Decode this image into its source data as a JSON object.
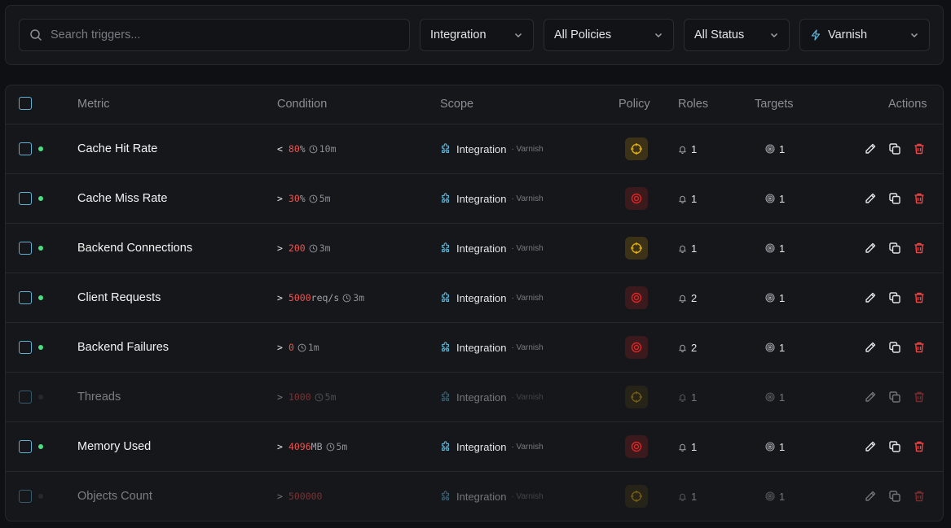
{
  "filters": {
    "search_placeholder": "Search triggers...",
    "scope_select": "Integration",
    "policy_select": "All Policies",
    "status_select": "All Status",
    "integration_select": "Varnish"
  },
  "table": {
    "headers": {
      "metric": "Metric",
      "condition": "Condition",
      "scope": "Scope",
      "policy": "Policy",
      "roles": "Roles",
      "targets": "Targets",
      "actions": "Actions"
    },
    "rows": [
      {
        "metric": "Cache Hit Rate",
        "op": "<",
        "threshold": "80",
        "unit": "%",
        "duration": "10m",
        "scope": "Integration",
        "scope_sub": "· Varnish",
        "policy": "warning",
        "roles": "1",
        "targets": "1",
        "enabled": true
      },
      {
        "metric": "Cache Miss Rate",
        "op": ">",
        "threshold": "30",
        "unit": "%",
        "duration": "5m",
        "scope": "Integration",
        "scope_sub": "· Varnish",
        "policy": "critical",
        "roles": "1",
        "targets": "1",
        "enabled": true
      },
      {
        "metric": "Backend Connections",
        "op": ">",
        "threshold": "200",
        "unit": "",
        "duration": "3m",
        "scope": "Integration",
        "scope_sub": "· Varnish",
        "policy": "warning",
        "roles": "1",
        "targets": "1",
        "enabled": true
      },
      {
        "metric": "Client Requests",
        "op": ">",
        "threshold": "5000",
        "unit": "req/s",
        "duration": "3m",
        "scope": "Integration",
        "scope_sub": "· Varnish",
        "policy": "critical",
        "roles": "2",
        "targets": "1",
        "enabled": true
      },
      {
        "metric": "Backend Failures",
        "op": ">",
        "threshold": "0",
        "unit": "",
        "duration": "1m",
        "scope": "Integration",
        "scope_sub": "· Varnish",
        "policy": "critical",
        "roles": "2",
        "targets": "1",
        "enabled": true
      },
      {
        "metric": "Threads",
        "op": ">",
        "threshold": "1000",
        "unit": "",
        "duration": "5m",
        "scope": "Integration",
        "scope_sub": "· Varnish",
        "policy": "warning",
        "roles": "1",
        "targets": "1",
        "enabled": false
      },
      {
        "metric": "Memory Used",
        "op": ">",
        "threshold": "4096",
        "unit": "MB",
        "duration": "5m",
        "scope": "Integration",
        "scope_sub": "· Varnish",
        "policy": "critical",
        "roles": "1",
        "targets": "1",
        "enabled": true
      },
      {
        "metric": "Objects Count",
        "op": ">",
        "threshold": "500000",
        "unit": "",
        "duration": "",
        "scope": "Integration",
        "scope_sub": "· Varnish",
        "policy": "warning",
        "roles": "1",
        "targets": "1",
        "enabled": false
      }
    ]
  },
  "colors": {
    "accent": "#5fb0d2",
    "enabled_dot": "#4ade80",
    "disabled_dot": "#3f3f46",
    "threshold": "#ef5350",
    "warning": "#eab308",
    "critical": "#dc2626",
    "delete": "#ef4444"
  },
  "icons": {
    "search": "search-icon",
    "chevron": "chevron-down-icon",
    "integration": "bolt-icon",
    "scope": "puzzle-icon",
    "warning_policy": "crosshair-icon",
    "critical_policy": "target-icon",
    "roles": "bell-icon",
    "targets": "target-circle-icon",
    "edit": "pencil-icon",
    "duplicate": "copy-icon",
    "delete": "trash-icon",
    "duration": "clock-icon"
  }
}
